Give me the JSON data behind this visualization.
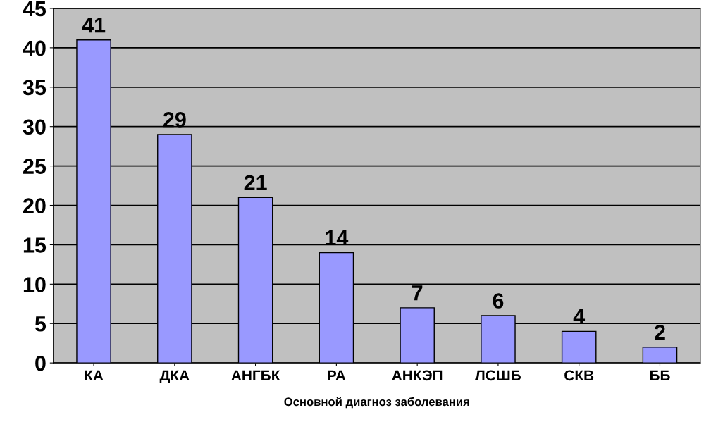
{
  "chart_data": {
    "type": "bar",
    "xlabel": "Основной диагноз заболевания",
    "categories": [
      "КА",
      "ДКА",
      "АНГБК",
      "РА",
      "АНКЭП",
      "ЛСШБ",
      "СКВ",
      "ББ"
    ],
    "values": [
      41,
      29,
      21,
      14,
      7,
      6,
      4,
      2
    ],
    "color": "#9999ff",
    "ylim": [
      0,
      45
    ],
    "yticks": [
      0,
      5,
      10,
      15,
      20,
      25,
      30,
      35,
      40,
      45
    ],
    "grid": "y",
    "data_labels": true
  }
}
